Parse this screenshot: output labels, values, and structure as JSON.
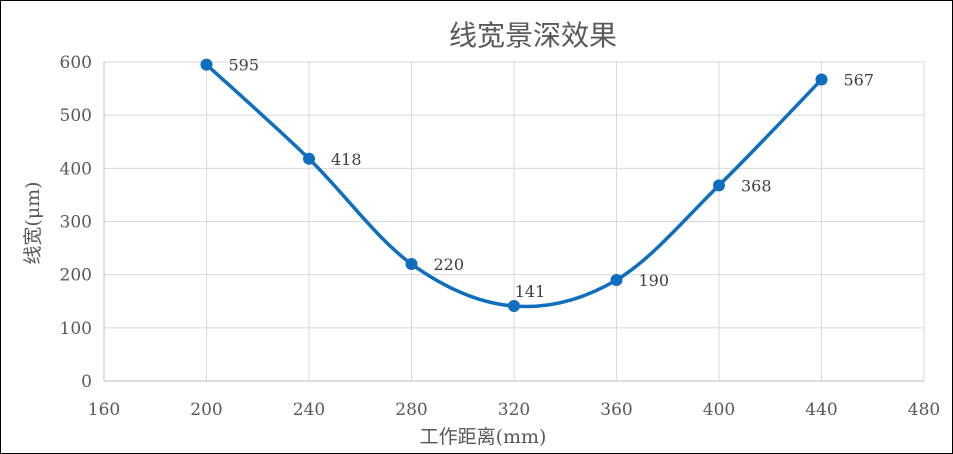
{
  "chart_data": {
    "type": "scatter",
    "title": "线宽景深效果",
    "xlabel": "工作距离(mm)",
    "ylabel": "线宽(μm)",
    "xlim": [
      160,
      480
    ],
    "ylim": [
      0,
      600
    ],
    "xticks": [
      160,
      200,
      240,
      280,
      320,
      360,
      400,
      440,
      480
    ],
    "yticks": [
      0,
      100,
      200,
      300,
      400,
      500,
      600
    ],
    "grid": true,
    "legend": "none",
    "smooth": true,
    "series": [
      {
        "x": [
          200,
          240,
          280,
          320,
          360,
          400,
          440
        ],
        "y": [
          595,
          418,
          220,
          141,
          190,
          368,
          567
        ],
        "labels": [
          "595",
          "418",
          "220",
          "141",
          "190",
          "368",
          "567"
        ],
        "color": "#0F6EBE"
      }
    ]
  }
}
